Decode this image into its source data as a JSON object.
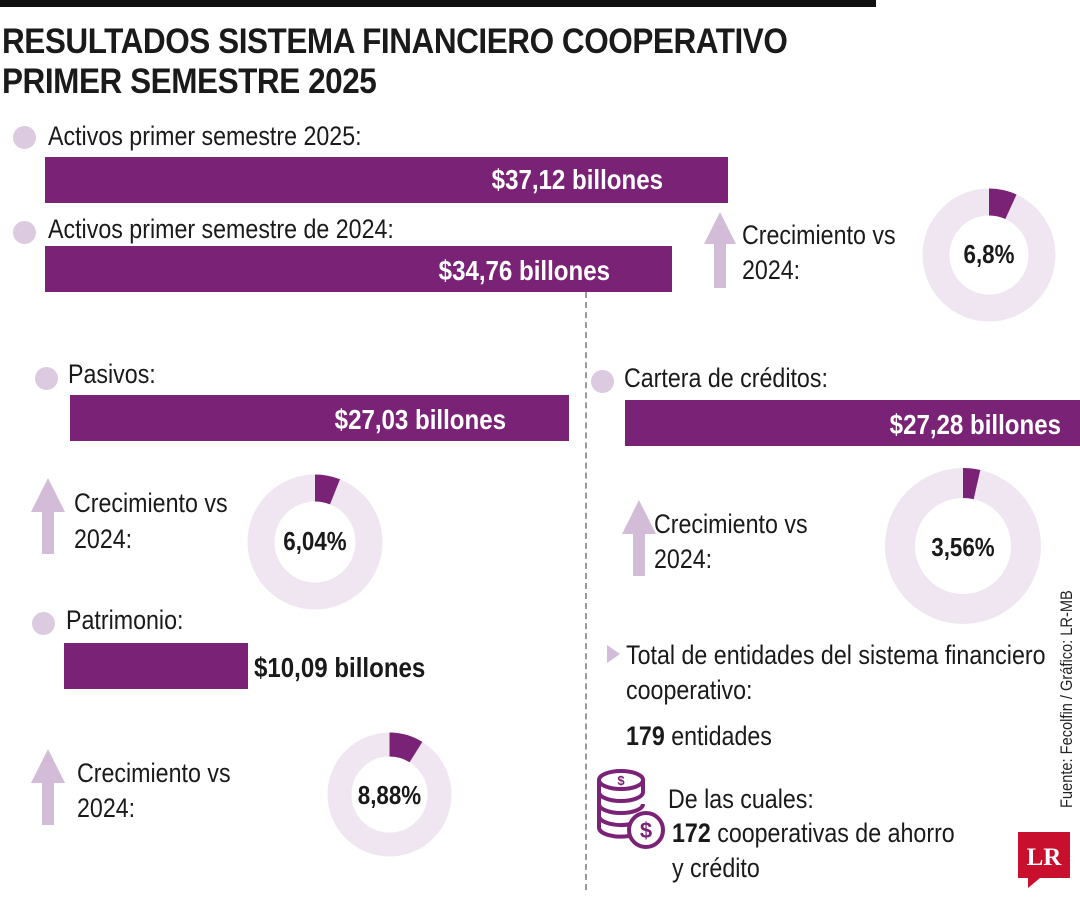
{
  "title": {
    "line1": "RESULTADOS SISTEMA FINANCIERO COOPERATIVO",
    "line2": "PRIMER SEMESTRE 2025"
  },
  "activos": {
    "label_2025": "Activos primer semestre 2025:",
    "value_2025": "$37,12 billones",
    "label_2024": "Activos primer semestre de 2024:",
    "value_2024": "$34,76 billones",
    "growth_label_line1": "Crecimiento vs",
    "growth_label_line2": "2024:",
    "growth_value": "6,8%"
  },
  "pasivos": {
    "label": "Pasivos:",
    "value": "$27,03 billones",
    "growth_label_line1": "Crecimiento vs",
    "growth_label_line2": "2024:",
    "growth_value": "6,04%"
  },
  "patrimonio": {
    "label": "Patrimonio:",
    "value": "$10,09 billones",
    "growth_label_line1": "Crecimiento vs",
    "growth_label_line2": "2024:",
    "growth_value": "8,88%"
  },
  "cartera": {
    "label": "Cartera de créditos:",
    "value": "$27,28 billones",
    "growth_label_line1": "Crecimiento vs",
    "growth_label_line2": "2024:",
    "growth_value": "3,56%"
  },
  "entidades": {
    "label_line1": "Total de entidades del sistema financiero",
    "label_line2": "cooperativo:",
    "count": "179",
    "count_suffix": " entidades",
    "sub_label": "De las cuales:",
    "sub_count": "172",
    "sub_suffix_line1": " cooperativas de ahorro",
    "sub_suffix_line2": "y crédito"
  },
  "source": "Fuente: Fecolfin / Gráfico: LR-MB",
  "logo_text": "LR",
  "colors": {
    "bar": "#7a2276",
    "dot": "#dccae0",
    "donut_track": "#efe6f1",
    "donut_fill": "#7a2276",
    "arrow": "#d3bcd8"
  },
  "chart_data": [
    {
      "type": "bar",
      "orientation": "horizontal",
      "categories": [
        "Activos primer semestre 2025",
        "Activos primer semestre de 2024",
        "Pasivos",
        "Patrimonio",
        "Cartera de créditos"
      ],
      "values": [
        37.12,
        34.76,
        27.03,
        10.09,
        27.28
      ],
      "unit": "billones"
    },
    {
      "type": "pie",
      "categories": [
        "Activos",
        "Pasivos",
        "Patrimonio",
        "Cartera de créditos"
      ],
      "values": [
        6.8,
        6.04,
        8.88,
        3.56
      ],
      "unit": "%"
    }
  ]
}
